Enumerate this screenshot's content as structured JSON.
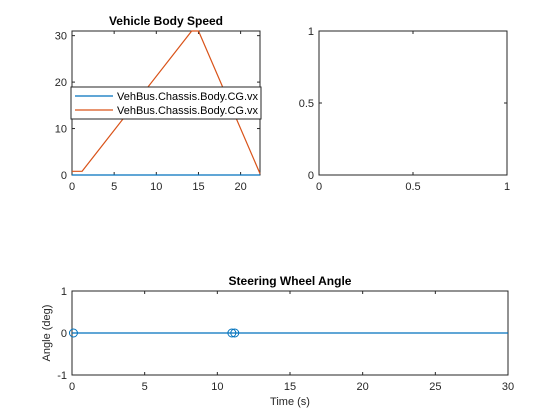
{
  "chart_data": [
    {
      "type": "line",
      "title": "Vehicle Body Speed",
      "xlabel": "",
      "ylabel": "",
      "xlim": [
        0,
        22.3
      ],
      "ylim": [
        0,
        31
      ],
      "xticks": [
        0,
        5,
        10,
        15,
        20
      ],
      "yticks": [
        0,
        10,
        20,
        30
      ],
      "grid": false,
      "legend_position": "middle-left",
      "series": [
        {
          "name": "VehBus.Chassis.Body.CG.vx",
          "color": "#0072BD",
          "x": [
            0,
            22.3
          ],
          "y": [
            0,
            0
          ]
        },
        {
          "name": "VehBus.Chassis.Body.CG.vx",
          "color": "#D95319",
          "x": [
            0,
            1.2,
            14.2,
            15.0,
            22.3
          ],
          "y": [
            0.8,
            0.8,
            31,
            31,
            0.3
          ]
        }
      ]
    },
    {
      "type": "line",
      "title": "",
      "xlabel": "",
      "ylabel": "",
      "xlim": [
        0,
        1
      ],
      "ylim": [
        0,
        1
      ],
      "xticks": [
        "0",
        "0.5",
        "1"
      ],
      "yticks": [
        "0",
        "0.5",
        "1"
      ],
      "grid": false,
      "series": []
    },
    {
      "type": "line",
      "title": "Steering Wheel Angle",
      "xlabel": "Time (s)",
      "ylabel": "Angle (deg)",
      "xlim": [
        0,
        30
      ],
      "ylim": [
        -1,
        1
      ],
      "xticks": [
        0,
        5,
        10,
        15,
        20,
        25,
        30
      ],
      "yticks": [
        -1,
        0,
        1
      ],
      "grid": false,
      "series": [
        {
          "color": "#0072BD",
          "x": [
            0,
            30
          ],
          "y": [
            0,
            0
          ]
        }
      ],
      "markers": {
        "color": "#0072BD",
        "shape": "circle",
        "x": [
          0.1,
          11.0,
          11.2
        ],
        "y": [
          0,
          0,
          0
        ]
      }
    }
  ]
}
